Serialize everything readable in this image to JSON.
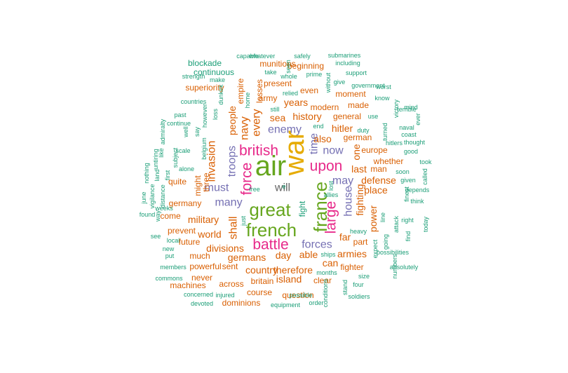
{
  "palette": {
    "teal": "#1b9e77",
    "orange": "#d95f02",
    "purple": "#7570b3",
    "magenta": "#e7298a",
    "green": "#66a61e",
    "gold": "#e6ab02",
    "gray": "#666666"
  },
  "words": [
    {
      "text": "will",
      "tier": 7,
      "color": "gray"
    },
    {
      "text": "war",
      "tier": 6,
      "color": "gold"
    },
    {
      "text": "air",
      "tier": 6,
      "color": "green"
    },
    {
      "text": "great",
      "tier": 5,
      "color": "green"
    },
    {
      "text": "french",
      "tier": 5,
      "color": "green"
    },
    {
      "text": "france",
      "tier": 5,
      "color": "green"
    },
    {
      "text": "british",
      "tier": 4,
      "color": "magenta"
    },
    {
      "text": "upon",
      "tier": 4,
      "color": "magenta"
    },
    {
      "text": "battle",
      "tier": 4,
      "color": "magenta"
    },
    {
      "text": "force",
      "tier": 4,
      "color": "magenta"
    },
    {
      "text": "large",
      "tier": 4,
      "color": "magenta"
    },
    {
      "text": "many",
      "tier": 3,
      "color": "purple"
    },
    {
      "text": "enemy",
      "tier": 3,
      "color": "purple"
    },
    {
      "text": "forces",
      "tier": 3,
      "color": "purple"
    },
    {
      "text": "troops",
      "tier": 3,
      "color": "purple"
    },
    {
      "text": "now",
      "tier": 3,
      "color": "purple"
    },
    {
      "text": "time",
      "tier": 3,
      "color": "purple"
    },
    {
      "text": "house",
      "tier": 3,
      "color": "purple"
    },
    {
      "text": "may",
      "tier": 3,
      "color": "purple"
    },
    {
      "text": "must",
      "tier": 3,
      "color": "purple"
    },
    {
      "text": "shall",
      "tier": 3,
      "color": "orange"
    },
    {
      "text": "navy",
      "tier": 3,
      "color": "orange"
    },
    {
      "text": "every",
      "tier": 3,
      "color": "orange"
    },
    {
      "text": "invasion",
      "tier": 3,
      "color": "orange"
    },
    {
      "text": "sea",
      "tier": 2,
      "color": "orange"
    },
    {
      "text": "history",
      "tier": 2,
      "color": "orange"
    },
    {
      "text": "also",
      "tier": 2,
      "color": "orange"
    },
    {
      "text": "hitler",
      "tier": 2,
      "color": "orange"
    },
    {
      "text": "years",
      "tier": 2,
      "color": "orange"
    },
    {
      "text": "people",
      "tier": 2,
      "color": "orange"
    },
    {
      "text": "military",
      "tier": 2,
      "color": "orange"
    },
    {
      "text": "world",
      "tier": 2,
      "color": "orange"
    },
    {
      "text": "divisions",
      "tier": 2,
      "color": "orange"
    },
    {
      "text": "germans",
      "tier": 2,
      "color": "orange"
    },
    {
      "text": "day",
      "tier": 2,
      "color": "orange"
    },
    {
      "text": "able",
      "tier": 2,
      "color": "orange"
    },
    {
      "text": "can",
      "tier": 2,
      "color": "orange"
    },
    {
      "text": "country",
      "tier": 2,
      "color": "orange"
    },
    {
      "text": "therefore",
      "tier": 2,
      "color": "orange"
    },
    {
      "text": "island",
      "tier": 2,
      "color": "orange"
    },
    {
      "text": "far",
      "tier": 2,
      "color": "orange"
    },
    {
      "text": "last",
      "tier": 2,
      "color": "orange"
    },
    {
      "text": "fighting",
      "tier": 2,
      "color": "orange"
    },
    {
      "text": "place",
      "tier": 2,
      "color": "orange"
    },
    {
      "text": "defense",
      "tier": 2,
      "color": "orange"
    },
    {
      "text": "armies",
      "tier": 2,
      "color": "orange"
    },
    {
      "text": "power",
      "tier": 2,
      "color": "orange"
    },
    {
      "text": "one",
      "tier": 2,
      "color": "orange"
    },
    {
      "text": "german",
      "tier": 1,
      "color": "orange"
    },
    {
      "text": "might",
      "tier": 1,
      "color": "orange"
    },
    {
      "text": "three",
      "tier": 1,
      "color": "orange"
    },
    {
      "text": "general",
      "tier": 1,
      "color": "orange"
    },
    {
      "text": "fight",
      "tier": 1,
      "color": "teal"
    },
    {
      "text": "germany",
      "tier": 1,
      "color": "orange"
    },
    {
      "text": "present",
      "tier": 1,
      "color": "orange"
    },
    {
      "text": "beginning",
      "tier": 1,
      "color": "orange"
    },
    {
      "text": "munitions",
      "tier": 1,
      "color": "orange"
    },
    {
      "text": "superiority",
      "tier": 1,
      "color": "orange"
    },
    {
      "text": "moment",
      "tier": 1,
      "color": "orange"
    },
    {
      "text": "modern",
      "tier": 1,
      "color": "orange"
    },
    {
      "text": "made",
      "tier": 1,
      "color": "orange"
    },
    {
      "text": "europe",
      "tier": 1,
      "color": "orange"
    },
    {
      "text": "whether",
      "tier": 1,
      "color": "orange"
    },
    {
      "text": "man",
      "tier": 1,
      "color": "orange"
    },
    {
      "text": "part",
      "tier": 1,
      "color": "orange"
    },
    {
      "text": "fighter",
      "tier": 1,
      "color": "orange"
    },
    {
      "text": "quite",
      "tier": 1,
      "color": "orange"
    },
    {
      "text": "come",
      "tier": 1,
      "color": "orange"
    },
    {
      "text": "prevent",
      "tier": 1,
      "color": "orange"
    },
    {
      "text": "future",
      "tier": 1,
      "color": "orange"
    },
    {
      "text": "much",
      "tier": 1,
      "color": "orange"
    },
    {
      "text": "powerful",
      "tier": 1,
      "color": "orange"
    },
    {
      "text": "sent",
      "tier": 1,
      "color": "orange"
    },
    {
      "text": "across",
      "tier": 1,
      "color": "orange"
    },
    {
      "text": "britain",
      "tier": 1,
      "color": "orange"
    },
    {
      "text": "course",
      "tier": 1,
      "color": "orange"
    },
    {
      "text": "question",
      "tier": 1,
      "color": "orange"
    },
    {
      "text": "clear",
      "tier": 1,
      "color": "orange"
    },
    {
      "text": "machines",
      "tier": 1,
      "color": "orange"
    },
    {
      "text": "never",
      "tier": 1,
      "color": "orange"
    },
    {
      "text": "dominions",
      "tier": 1,
      "color": "orange"
    },
    {
      "text": "army",
      "tier": 1,
      "color": "orange"
    },
    {
      "text": "even",
      "tier": 1,
      "color": "orange"
    },
    {
      "text": "losses",
      "tier": 1,
      "color": "orange"
    },
    {
      "text": "empire",
      "tier": 1,
      "color": "orange"
    },
    {
      "text": "continuous",
      "tier": 1,
      "color": "teal"
    },
    {
      "text": "blockade",
      "tier": 1,
      "color": "teal"
    },
    {
      "text": "capable",
      "tier": 0,
      "color": "teal"
    },
    {
      "text": "whatever",
      "tier": 0,
      "color": "teal"
    },
    {
      "text": "safely",
      "tier": 0,
      "color": "teal"
    },
    {
      "text": "submarines",
      "tier": 0,
      "color": "teal"
    },
    {
      "text": "including",
      "tier": 0,
      "color": "teal"
    },
    {
      "text": "support",
      "tier": 0,
      "color": "teal"
    },
    {
      "text": "government",
      "tier": 0,
      "color": "teal"
    },
    {
      "text": "give",
      "tier": 0,
      "color": "teal"
    },
    {
      "text": "take",
      "tier": 0,
      "color": "teal"
    },
    {
      "text": "strength",
      "tier": 0,
      "color": "teal"
    },
    {
      "text": "make",
      "tier": 0,
      "color": "teal"
    },
    {
      "text": "whole",
      "tier": 0,
      "color": "teal"
    },
    {
      "text": "prime",
      "tier": 0,
      "color": "teal"
    },
    {
      "text": "seen",
      "tier": 0,
      "color": "teal"
    },
    {
      "text": "without",
      "tier": 0,
      "color": "teal"
    },
    {
      "text": "relied",
      "tier": 0,
      "color": "teal"
    },
    {
      "text": "still",
      "tier": 0,
      "color": "teal"
    },
    {
      "text": "countries",
      "tier": 0,
      "color": "teal"
    },
    {
      "text": "home",
      "tier": 0,
      "color": "teal"
    },
    {
      "text": "dunkirk",
      "tier": 0,
      "color": "teal"
    },
    {
      "text": "however",
      "tier": 0,
      "color": "teal"
    },
    {
      "text": "loss",
      "tier": 0,
      "color": "teal"
    },
    {
      "text": "past",
      "tier": 0,
      "color": "teal"
    },
    {
      "text": "continue",
      "tier": 0,
      "color": "teal"
    },
    {
      "text": "admiralty",
      "tier": 0,
      "color": "teal"
    },
    {
      "text": "well",
      "tier": 0,
      "color": "teal"
    },
    {
      "text": "say",
      "tier": 0,
      "color": "teal"
    },
    {
      "text": "scale",
      "tier": 0,
      "color": "teal"
    },
    {
      "text": "belgium",
      "tier": 0,
      "color": "teal"
    },
    {
      "text": "like",
      "tier": 0,
      "color": "teal"
    },
    {
      "text": "nothing",
      "tier": 0,
      "color": "teal"
    },
    {
      "text": "untiring",
      "tier": 0,
      "color": "teal"
    },
    {
      "text": "subject",
      "tier": 0,
      "color": "teal"
    },
    {
      "text": "alone",
      "tier": 0,
      "color": "teal"
    },
    {
      "text": "first",
      "tier": 0,
      "color": "teal"
    },
    {
      "text": "land",
      "tier": 0,
      "color": "teal"
    },
    {
      "text": "june",
      "tier": 0,
      "color": "teal"
    },
    {
      "text": "vigilance",
      "tier": 0,
      "color": "teal"
    },
    {
      "text": "distance",
      "tier": 0,
      "color": "teal"
    },
    {
      "text": "weeks",
      "tier": 0,
      "color": "teal"
    },
    {
      "text": "found",
      "tier": 0,
      "color": "teal"
    },
    {
      "text": "way",
      "tier": 0,
      "color": "teal"
    },
    {
      "text": "see",
      "tier": 0,
      "color": "teal"
    },
    {
      "text": "local",
      "tier": 0,
      "color": "teal"
    },
    {
      "text": "new",
      "tier": 0,
      "color": "teal"
    },
    {
      "text": "put",
      "tier": 0,
      "color": "teal"
    },
    {
      "text": "members",
      "tier": 0,
      "color": "teal"
    },
    {
      "text": "commons",
      "tier": 0,
      "color": "teal"
    },
    {
      "text": "concerned",
      "tier": 0,
      "color": "teal"
    },
    {
      "text": "injured",
      "tier": 0,
      "color": "teal"
    },
    {
      "text": "devoted",
      "tier": 0,
      "color": "teal"
    },
    {
      "text": "equipment",
      "tier": 0,
      "color": "teal"
    },
    {
      "text": "possible",
      "tier": 0,
      "color": "teal"
    },
    {
      "text": "conditions",
      "tier": 0,
      "color": "teal"
    },
    {
      "text": "stand",
      "tier": 0,
      "color": "teal"
    },
    {
      "text": "months",
      "tier": 0,
      "color": "teal"
    },
    {
      "text": "ships",
      "tier": 0,
      "color": "teal"
    },
    {
      "text": "size",
      "tier": 0,
      "color": "teal"
    },
    {
      "text": "four",
      "tier": 0,
      "color": "teal"
    },
    {
      "text": "soldiers",
      "tier": 0,
      "color": "teal"
    },
    {
      "text": "heavy",
      "tier": 0,
      "color": "teal"
    },
    {
      "text": "expect",
      "tier": 0,
      "color": "teal"
    },
    {
      "text": "line",
      "tier": 0,
      "color": "teal"
    },
    {
      "text": "going",
      "tier": 0,
      "color": "teal"
    },
    {
      "text": "attack",
      "tier": 0,
      "color": "teal"
    },
    {
      "text": "numbers",
      "tier": 0,
      "color": "teal"
    },
    {
      "text": "possibilities",
      "tier": 0,
      "color": "teal"
    },
    {
      "text": "absolutely",
      "tier": 0,
      "color": "teal"
    },
    {
      "text": "find",
      "tier": 0,
      "color": "teal"
    },
    {
      "text": "right",
      "tier": 0,
      "color": "teal"
    },
    {
      "text": "today",
      "tier": 0,
      "color": "teal"
    },
    {
      "text": "think",
      "tier": 0,
      "color": "teal"
    },
    {
      "text": "depends",
      "tier": 0,
      "color": "teal"
    },
    {
      "text": "given",
      "tier": 0,
      "color": "teal"
    },
    {
      "text": "finest",
      "tier": 0,
      "color": "teal"
    },
    {
      "text": "soon",
      "tier": 0,
      "color": "teal"
    },
    {
      "text": "called",
      "tier": 0,
      "color": "teal"
    },
    {
      "text": "took",
      "tier": 0,
      "color": "teal"
    },
    {
      "text": "good",
      "tier": 0,
      "color": "teal"
    },
    {
      "text": "coast",
      "tier": 0,
      "color": "teal"
    },
    {
      "text": "thought",
      "tier": 0,
      "color": "teal"
    },
    {
      "text": "naval",
      "tier": 0,
      "color": "teal"
    },
    {
      "text": "mind",
      "tier": 0,
      "color": "teal"
    },
    {
      "text": "ever",
      "tier": 0,
      "color": "teal"
    },
    {
      "text": "terrible",
      "tier": 0,
      "color": "teal"
    },
    {
      "text": "victory",
      "tier": 0,
      "color": "teal"
    },
    {
      "text": "turned",
      "tier": 0,
      "color": "teal"
    },
    {
      "text": "hitlers",
      "tier": 0,
      "color": "teal"
    },
    {
      "text": "use",
      "tier": 0,
      "color": "teal"
    },
    {
      "text": "know",
      "tier": 0,
      "color": "teal"
    },
    {
      "text": "worst",
      "tier": 0,
      "color": "teal"
    },
    {
      "text": "duty",
      "tier": 0,
      "color": "teal"
    },
    {
      "text": "end",
      "tier": 0,
      "color": "teal"
    },
    {
      "text": "allies",
      "tier": 0,
      "color": "teal"
    },
    {
      "text": "lost",
      "tier": 0,
      "color": "teal"
    },
    {
      "text": "free",
      "tier": 0,
      "color": "teal"
    },
    {
      "text": "just",
      "tier": 0,
      "color": "teal"
    },
    {
      "text": "order",
      "tier": 0,
      "color": "teal"
    },
    {
      "text": "e",
      "tier": 0,
      "color": "teal"
    }
  ]
}
